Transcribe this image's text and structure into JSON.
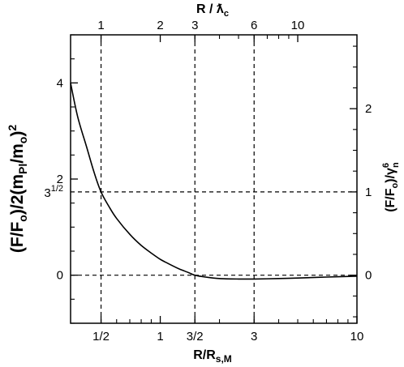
{
  "chart_data": {
    "type": "line",
    "bottom_axis": {
      "label": "R/R",
      "label_sub": "s,M",
      "scale": "log",
      "ticks": [
        {
          "value": 0.5,
          "label": "1/2"
        },
        {
          "value": 1,
          "label": "1"
        },
        {
          "value": 1.5,
          "label": "3/2"
        },
        {
          "value": 3,
          "label": "3"
        },
        {
          "value": 10,
          "label": "10"
        }
      ],
      "minor_ticks": [
        0.6,
        0.7,
        0.8,
        0.9,
        2,
        4,
        5,
        6,
        7,
        8,
        9
      ],
      "range": [
        0.35,
        10
      ]
    },
    "top_axis": {
      "label": "R / ƛ",
      "label_sub": "c",
      "ticks": [
        {
          "value": 1,
          "label": "1"
        },
        {
          "value": 2,
          "label": "2"
        },
        {
          "value": 3,
          "label": "3"
        },
        {
          "value": 6,
          "label": "6"
        },
        {
          "value": 10,
          "label": "10"
        }
      ]
    },
    "left_axis": {
      "label": "(F/F",
      "label_sub1": "o",
      "label_mid": ")/2(m",
      "label_sub2": "Pl",
      "label_mid2": "/m",
      "label_sub3": "o",
      "label_end": ")",
      "label_sup": "2",
      "range": [
        -1,
        5
      ],
      "ticks": [
        {
          "value": 0,
          "label": "0"
        },
        {
          "value": 2,
          "label": "2"
        },
        {
          "value": 4,
          "label": "4"
        }
      ],
      "special_tick": {
        "value": 1.732,
        "label_base": "3",
        "label_sup": "1/2"
      }
    },
    "right_axis": {
      "label": "(F/F",
      "label_sub1": "o",
      "label_mid": ")/γ",
      "label_sup": "6",
      "label_sub2": "n",
      "ticks": [
        {
          "value": 0,
          "label": "0"
        },
        {
          "value": 1,
          "label": "1"
        },
        {
          "value": 2,
          "label": "2"
        }
      ]
    },
    "series": [
      {
        "x": [
          0.35,
          0.38,
          0.42,
          0.46,
          0.5,
          0.55,
          0.6,
          0.7,
          0.8,
          0.9,
          1.0,
          1.1,
          1.25,
          1.4,
          1.5,
          1.7,
          2.0,
          2.5,
          3.0,
          4.0,
          5.0,
          7.0,
          10.0
        ],
        "y": [
          4.0,
          3.3,
          2.7,
          2.15,
          1.73,
          1.42,
          1.18,
          0.85,
          0.62,
          0.46,
          0.33,
          0.24,
          0.13,
          0.05,
          0.0,
          -0.04,
          -0.07,
          -0.08,
          -0.08,
          -0.07,
          -0.06,
          -0.04,
          -0.02
        ]
      }
    ],
    "reference_lines": {
      "horizontal": [
        0,
        1.732
      ],
      "vertical": [
        0.5,
        1.5,
        3
      ]
    }
  }
}
